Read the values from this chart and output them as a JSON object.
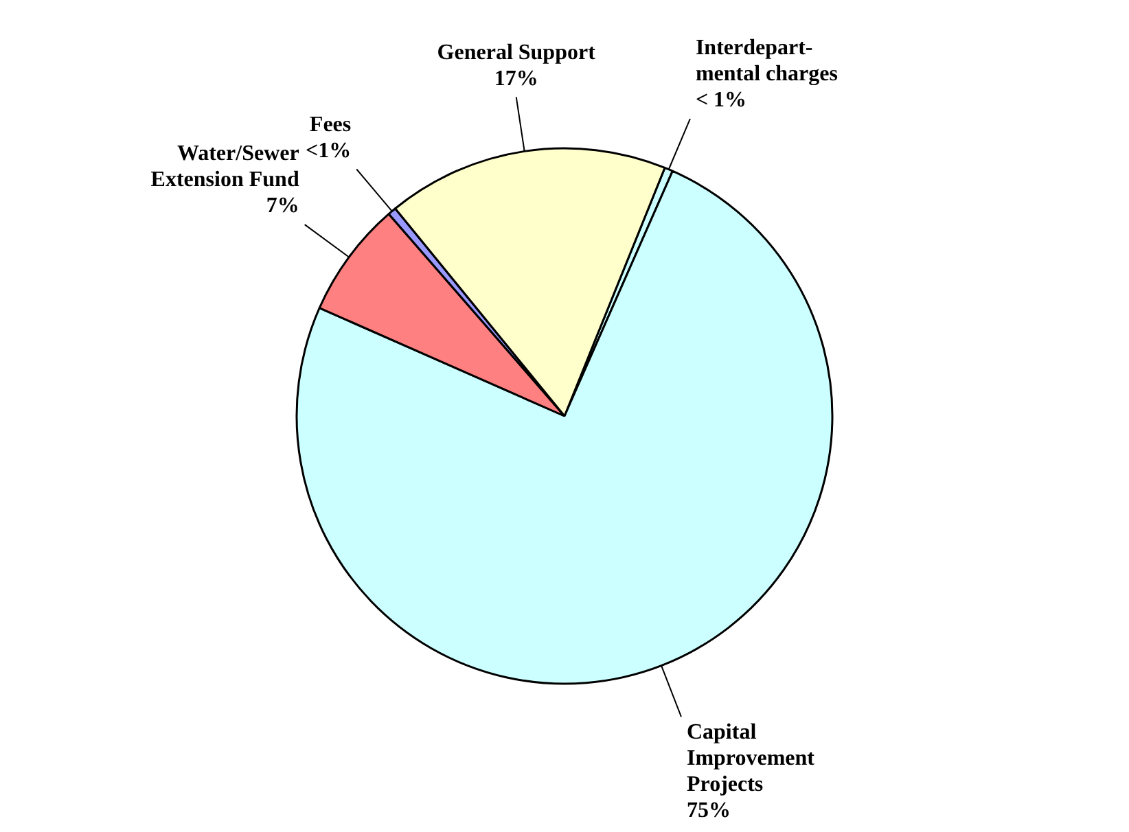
{
  "chart_data": {
    "type": "pie",
    "categories": [
      "Interdepart-\nmental charges",
      "Capital\nImprovement\nProjects",
      "Water/Sewer\nExtension Fund",
      "Fees",
      "General Support"
    ],
    "values": [
      0.5,
      75,
      7,
      0.5,
      17
    ],
    "value_labels": [
      "< 1%",
      "75%",
      "7%",
      "<1%",
      "17%"
    ],
    "colors": [
      "#ccffff",
      "#ccffff",
      "#ff8080",
      "#9999ff",
      "#ffffcc"
    ],
    "legend": false
  }
}
